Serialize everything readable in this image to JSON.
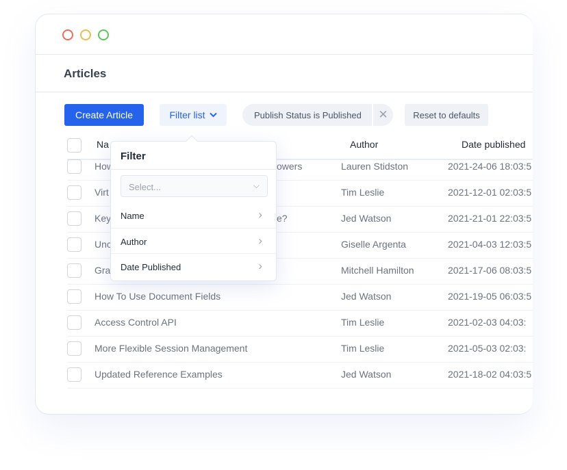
{
  "window": {
    "controls": [
      {
        "name": "close",
        "color": "#ef6a5a"
      },
      {
        "name": "minimize",
        "color": "#f2b94f"
      },
      {
        "name": "maximize",
        "color": "#5cc45a"
      }
    ]
  },
  "page": {
    "title": "Articles"
  },
  "toolbar": {
    "create_label": "Create Article",
    "filter_label": "Filter list",
    "active_filter": "Publish Status is Published",
    "reset_label": "Reset to defaults"
  },
  "colors": {
    "accent": "#2563eb"
  },
  "table": {
    "headers": {
      "name": "Na",
      "author": "Author",
      "date": "Date published"
    },
    "rows": [
      {
        "name": "How",
        "name_end": "owers",
        "author": "Lauren Stidston",
        "date": "2021-24-06 18:03:5"
      },
      {
        "name": "Virt",
        "name_end": "",
        "author": "Tim Leslie",
        "date": "2021-12-01 02:03:5"
      },
      {
        "name": "Key",
        "name_end": "e?",
        "author": "Jed Watson",
        "date": "2021-21-01 22:03:5"
      },
      {
        "name": "Unc",
        "name_end": "",
        "author": "Giselle Argenta",
        "date": "2021-04-03 12:03:5"
      },
      {
        "name": "Gra",
        "name_end": "",
        "author": "Mitchell Hamilton",
        "date": "2021-17-06 08:03:5"
      },
      {
        "name": "How To Use Document Fields",
        "name_end": "",
        "author": "Jed Watson",
        "date": "2021-19-05 06:03:5"
      },
      {
        "name": "Access Control API",
        "name_end": "",
        "author": "Tim Leslie",
        "date": "2021-02-03 04:03:"
      },
      {
        "name": "More Flexible Session Management",
        "name_end": "",
        "author": "Tim Leslie",
        "date": "2021-05-03 02:03:"
      },
      {
        "name": "Updated Reference Examples",
        "name_end": "",
        "author": "Jed Watson",
        "date": "2021-18-02 04:03:5"
      }
    ]
  },
  "filter_popover": {
    "title": "Filter",
    "select_placeholder": "Select...",
    "options": [
      "Name",
      "Author",
      "Date Published"
    ]
  }
}
